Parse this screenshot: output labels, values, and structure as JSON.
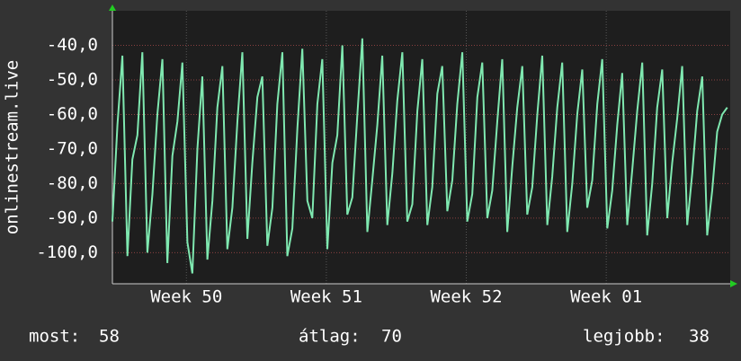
{
  "chart_data": {
    "type": "line",
    "y_label": "onlinestream.live",
    "ylim": [
      -109,
      -30
    ],
    "yticks": [
      {
        "value": -40,
        "label": "-40,0"
      },
      {
        "value": -50,
        "label": "-50,0"
      },
      {
        "value": -60,
        "label": "-60,0"
      },
      {
        "value": -70,
        "label": "-70,0"
      },
      {
        "value": -80,
        "label": "-80,0"
      },
      {
        "value": -90,
        "label": "-90,0"
      },
      {
        "value": -100,
        "label": "-100,0"
      }
    ],
    "xlim": [
      0,
      30.9
    ],
    "xticks": [
      {
        "value": 3.7,
        "label": "Week 50"
      },
      {
        "value": 10.7,
        "label": "Week 51"
      },
      {
        "value": 17.7,
        "label": "Week 52"
      },
      {
        "value": 24.7,
        "label": "Week 01"
      }
    ],
    "grid": true,
    "x": [
      0,
      0.25,
      0.5,
      0.75,
      1,
      1.25,
      1.5,
      1.75,
      2,
      2.25,
      2.5,
      2.75,
      3,
      3.25,
      3.5,
      3.75,
      4,
      4.25,
      4.5,
      4.75,
      5,
      5.25,
      5.5,
      5.75,
      6,
      6.25,
      6.5,
      6.75,
      7,
      7.25,
      7.5,
      7.75,
      8,
      8.25,
      8.5,
      8.75,
      9,
      9.25,
      9.5,
      9.75,
      10,
      10.25,
      10.5,
      10.75,
      11,
      11.25,
      11.5,
      11.75,
      12,
      12.25,
      12.5,
      12.75,
      13,
      13.25,
      13.5,
      13.75,
      14,
      14.25,
      14.5,
      14.75,
      15,
      15.25,
      15.5,
      15.75,
      16,
      16.25,
      16.5,
      16.75,
      17,
      17.25,
      17.5,
      17.75,
      18,
      18.25,
      18.5,
      18.75,
      19,
      19.25,
      19.5,
      19.75,
      20,
      20.25,
      20.5,
      20.75,
      21,
      21.25,
      21.5,
      21.75,
      22,
      22.25,
      22.5,
      22.75,
      23,
      23.25,
      23.5,
      23.75,
      24,
      24.25,
      24.5,
      24.75,
      25,
      25.25,
      25.5,
      25.75,
      26,
      26.25,
      26.5,
      26.75,
      27,
      27.25,
      27.5,
      27.75,
      28,
      28.25,
      28.5,
      28.75,
      29,
      29.25,
      29.5,
      29.75,
      30,
      30.25,
      30.5,
      30.75
    ],
    "series": [
      {
        "color": "#7fe8b0",
        "values": [
          -91,
          -63,
          -43,
          -101,
          -73,
          -66,
          -42,
          -100,
          -83,
          -60,
          -44,
          -103,
          -72,
          -62,
          -45,
          -97,
          -106,
          -70,
          -49,
          -102,
          -85,
          -58,
          -46,
          -99,
          -87,
          -62,
          -42,
          -96,
          -74,
          -55,
          -49,
          -98,
          -87,
          -57,
          -42,
          -101,
          -93,
          -64,
          -41,
          -85,
          -90,
          -57,
          -44,
          -99,
          -74,
          -66,
          -40,
          -89,
          -84,
          -60,
          -38,
          -94,
          -79,
          -63,
          -43,
          -92,
          -77,
          -56,
          -42,
          -91,
          -86,
          -59,
          -44,
          -92,
          -81,
          -54,
          -46,
          -88,
          -79,
          -57,
          -42,
          -91,
          -83,
          -55,
          -45,
          -90,
          -82,
          -62,
          -44,
          -94,
          -75,
          -58,
          -46,
          -89,
          -81,
          -60,
          -43,
          -92,
          -78,
          -58,
          -45,
          -94,
          -80,
          -60,
          -47,
          -87,
          -79,
          -57,
          -44,
          -93,
          -82,
          -63,
          -48,
          -92,
          -76,
          -59,
          -45,
          -95,
          -80,
          -58,
          -47,
          -90,
          -74,
          -61,
          -46,
          -92,
          -77,
          -59,
          -49,
          -95,
          -82,
          -65,
          -60,
          -58
        ]
      }
    ],
    "stats": [
      {
        "label": "most:",
        "value": 58
      },
      {
        "label": "átlag:",
        "value": 70
      },
      {
        "label": "legjobb:",
        "value": 38
      }
    ]
  }
}
